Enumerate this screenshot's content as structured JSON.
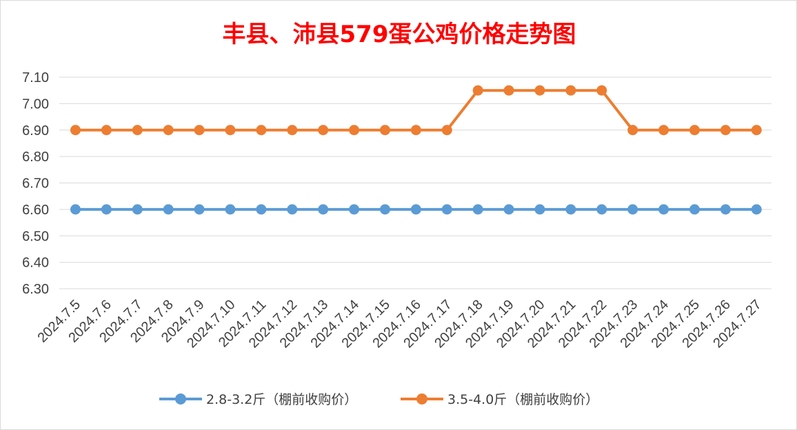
{
  "chart_data": {
    "type": "line",
    "title": "丰县、沛县579蛋公鸡价格走势图",
    "xlabel": "",
    "ylabel": "",
    "ylim": [
      6.3,
      7.1
    ],
    "yticks": [
      "7.10",
      "7.00",
      "6.90",
      "6.80",
      "6.70",
      "6.60",
      "6.50",
      "6.40",
      "6.30"
    ],
    "categories": [
      "2024.7.5",
      "2024.7.6",
      "2024.7.7",
      "2024.7.8",
      "2024.7.9",
      "2024.7.10",
      "2024.7.11",
      "2024.7.12",
      "2024.7.13",
      "2024.7.14",
      "2024.7.15",
      "2024.7.16",
      "2024.7.17",
      "2024.7.18",
      "2024.7.19",
      "2024.7.20",
      "2024.7.21",
      "2024.7.22",
      "2024.7.23",
      "2024.7.24",
      "2024.7.25",
      "2024.7.26",
      "2024.7.27"
    ],
    "series": [
      {
        "name": "2.8-3.2斤（棚前收购价）",
        "color": "#5b9bd5",
        "values": [
          6.6,
          6.6,
          6.6,
          6.6,
          6.6,
          6.6,
          6.6,
          6.6,
          6.6,
          6.6,
          6.6,
          6.6,
          6.6,
          6.6,
          6.6,
          6.6,
          6.6,
          6.6,
          6.6,
          6.6,
          6.6,
          6.6,
          6.6
        ]
      },
      {
        "name": "3.5-4.0斤（棚前收购价）",
        "color": "#ed7d31",
        "values": [
          6.9,
          6.9,
          6.9,
          6.9,
          6.9,
          6.9,
          6.9,
          6.9,
          6.9,
          6.9,
          6.9,
          6.9,
          6.9,
          7.05,
          7.05,
          7.05,
          7.05,
          7.05,
          6.9,
          6.9,
          6.9,
          6.9,
          6.9
        ]
      }
    ],
    "grid": true,
    "legend_position": "bottom",
    "title_color": "#ff0000"
  }
}
